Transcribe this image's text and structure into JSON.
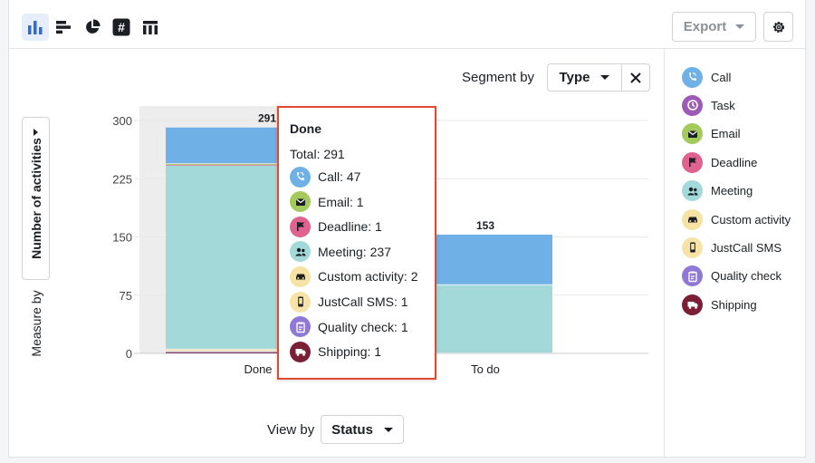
{
  "toolbar": {
    "icons": [
      "bar-chart-icon",
      "horizontal-bar-icon",
      "pie-chart-icon",
      "number-icon",
      "table-icon"
    ],
    "export_label": "Export"
  },
  "segment": {
    "label": "Segment by",
    "value": "Type"
  },
  "measure": {
    "button_label": "Number of activities",
    "label": "Measure by"
  },
  "view": {
    "label": "View by",
    "value": "Status"
  },
  "colors": {
    "call": "#6fb1e6",
    "task": "#9c5bb5",
    "email": "#a4c95c",
    "deadline": "#e0638f",
    "meeting": "#a3d9d9",
    "custom": "#f6e3a3",
    "sms": "#f7e2a8",
    "quality": "#8f78d6",
    "shipping": "#7a1f35"
  },
  "legend": [
    {
      "label": "Call",
      "color": "#6fb1e6",
      "icon": "phone-icon"
    },
    {
      "label": "Task",
      "color": "#9c5bb5",
      "icon": "clock-icon"
    },
    {
      "label": "Email",
      "color": "#a4c95c",
      "icon": "envelope-icon"
    },
    {
      "label": "Deadline",
      "color": "#e0638f",
      "icon": "flag-icon"
    },
    {
      "label": "Meeting",
      "color": "#a3d9d9",
      "icon": "people-icon"
    },
    {
      "label": "Custom activity",
      "color": "#f6e3a3",
      "icon": "car-icon"
    },
    {
      "label": "JustCall SMS",
      "color": "#f7e2a8",
      "icon": "mobile-icon"
    },
    {
      "label": "Quality check",
      "color": "#8f78d6",
      "icon": "clipboard-icon"
    },
    {
      "label": "Shipping",
      "color": "#7a1f35",
      "icon": "truck-icon"
    }
  ],
  "chart_data": {
    "type": "bar",
    "stacked": true,
    "categories": [
      "Done",
      "To do"
    ],
    "totals": [
      291,
      153
    ],
    "series": [
      {
        "name": "Shipping",
        "values": [
          1,
          0
        ]
      },
      {
        "name": "Quality check",
        "values": [
          1,
          0
        ]
      },
      {
        "name": "JustCall SMS",
        "values": [
          1,
          0
        ]
      },
      {
        "name": "Custom activity",
        "values": [
          2,
          0
        ]
      },
      {
        "name": "Meeting",
        "values": [
          237,
          88
        ]
      },
      {
        "name": "Deadline",
        "values": [
          1,
          0
        ]
      },
      {
        "name": "Email",
        "values": [
          1,
          0
        ]
      },
      {
        "name": "Call",
        "values": [
          47,
          65
        ]
      }
    ],
    "ylim": [
      0,
      300
    ],
    "yticks": [
      "300",
      "225",
      "150",
      "75",
      "0"
    ],
    "grid": true,
    "highlighted_category": "Done"
  },
  "tooltip": {
    "title": "Done",
    "total": "Total: 291",
    "rows": [
      {
        "label": "Call: 47",
        "color": "#6fb1e6",
        "icon": "phone-icon"
      },
      {
        "label": "Email: 1",
        "color": "#a4c95c",
        "icon": "envelope-icon"
      },
      {
        "label": "Deadline: 1",
        "color": "#e0638f",
        "icon": "flag-icon"
      },
      {
        "label": "Meeting: 237",
        "color": "#a3d9d9",
        "icon": "people-icon"
      },
      {
        "label": "Custom activity: 2",
        "color": "#f6e3a3",
        "icon": "car-icon"
      },
      {
        "label": "JustCall SMS: 1",
        "color": "#f7e2a8",
        "icon": "mobile-icon"
      },
      {
        "label": "Quality check: 1",
        "color": "#8f78d6",
        "icon": "clipboard-icon"
      },
      {
        "label": "Shipping: 1",
        "color": "#7a1f35",
        "icon": "truck-icon"
      }
    ]
  }
}
